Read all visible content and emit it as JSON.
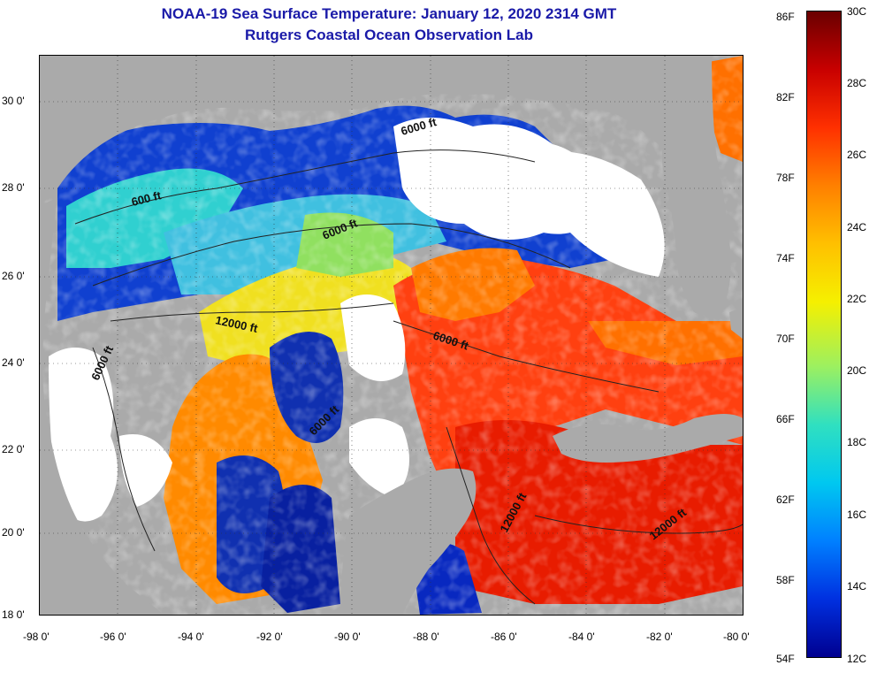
{
  "title": {
    "line1": "NOAA-19 Sea Surface Temperature:  January 12, 2020 2314 GMT",
    "line2": "Rutgers Coastal Ocean Observation Lab"
  },
  "latitude_ticks": [
    "30 0'",
    "28 0'",
    "26 0'",
    "24 0'",
    "22 0'",
    "20 0'",
    "18 0'"
  ],
  "longitude_ticks": [
    "-98 0'",
    "-96 0'",
    "-94 0'",
    "-92 0'",
    "-90 0'",
    "-88 0'",
    "-86 0'",
    "-84 0'",
    "-82 0'",
    "-80 0'"
  ],
  "contour_labels": [
    "600 ft",
    "6000 ft",
    "6000 ft",
    "12000 ft",
    "6000 ft",
    "6000 ft",
    "6000 ft",
    "12000 ft",
    "12000 ft"
  ],
  "colorbar": {
    "fahrenheit": [
      "86F",
      "82F",
      "78F",
      "74F",
      "70F",
      "66F",
      "62F",
      "58F",
      "54F"
    ],
    "celsius": [
      "30C",
      "28C",
      "26C",
      "24C",
      "22C",
      "20C",
      "18C",
      "16C",
      "14C",
      "12C"
    ],
    "colors": [
      "#6a0000",
      "#c80000",
      "#ff3000",
      "#ff8000",
      "#ffc000",
      "#f5f000",
      "#9cf060",
      "#30e0c0",
      "#00c8f0",
      "#0080ff",
      "#0030e0",
      "#000090"
    ]
  },
  "colors": {
    "land": "#aaaaaa",
    "cloud": "#ffffff",
    "title": "#1a1aa8"
  }
}
